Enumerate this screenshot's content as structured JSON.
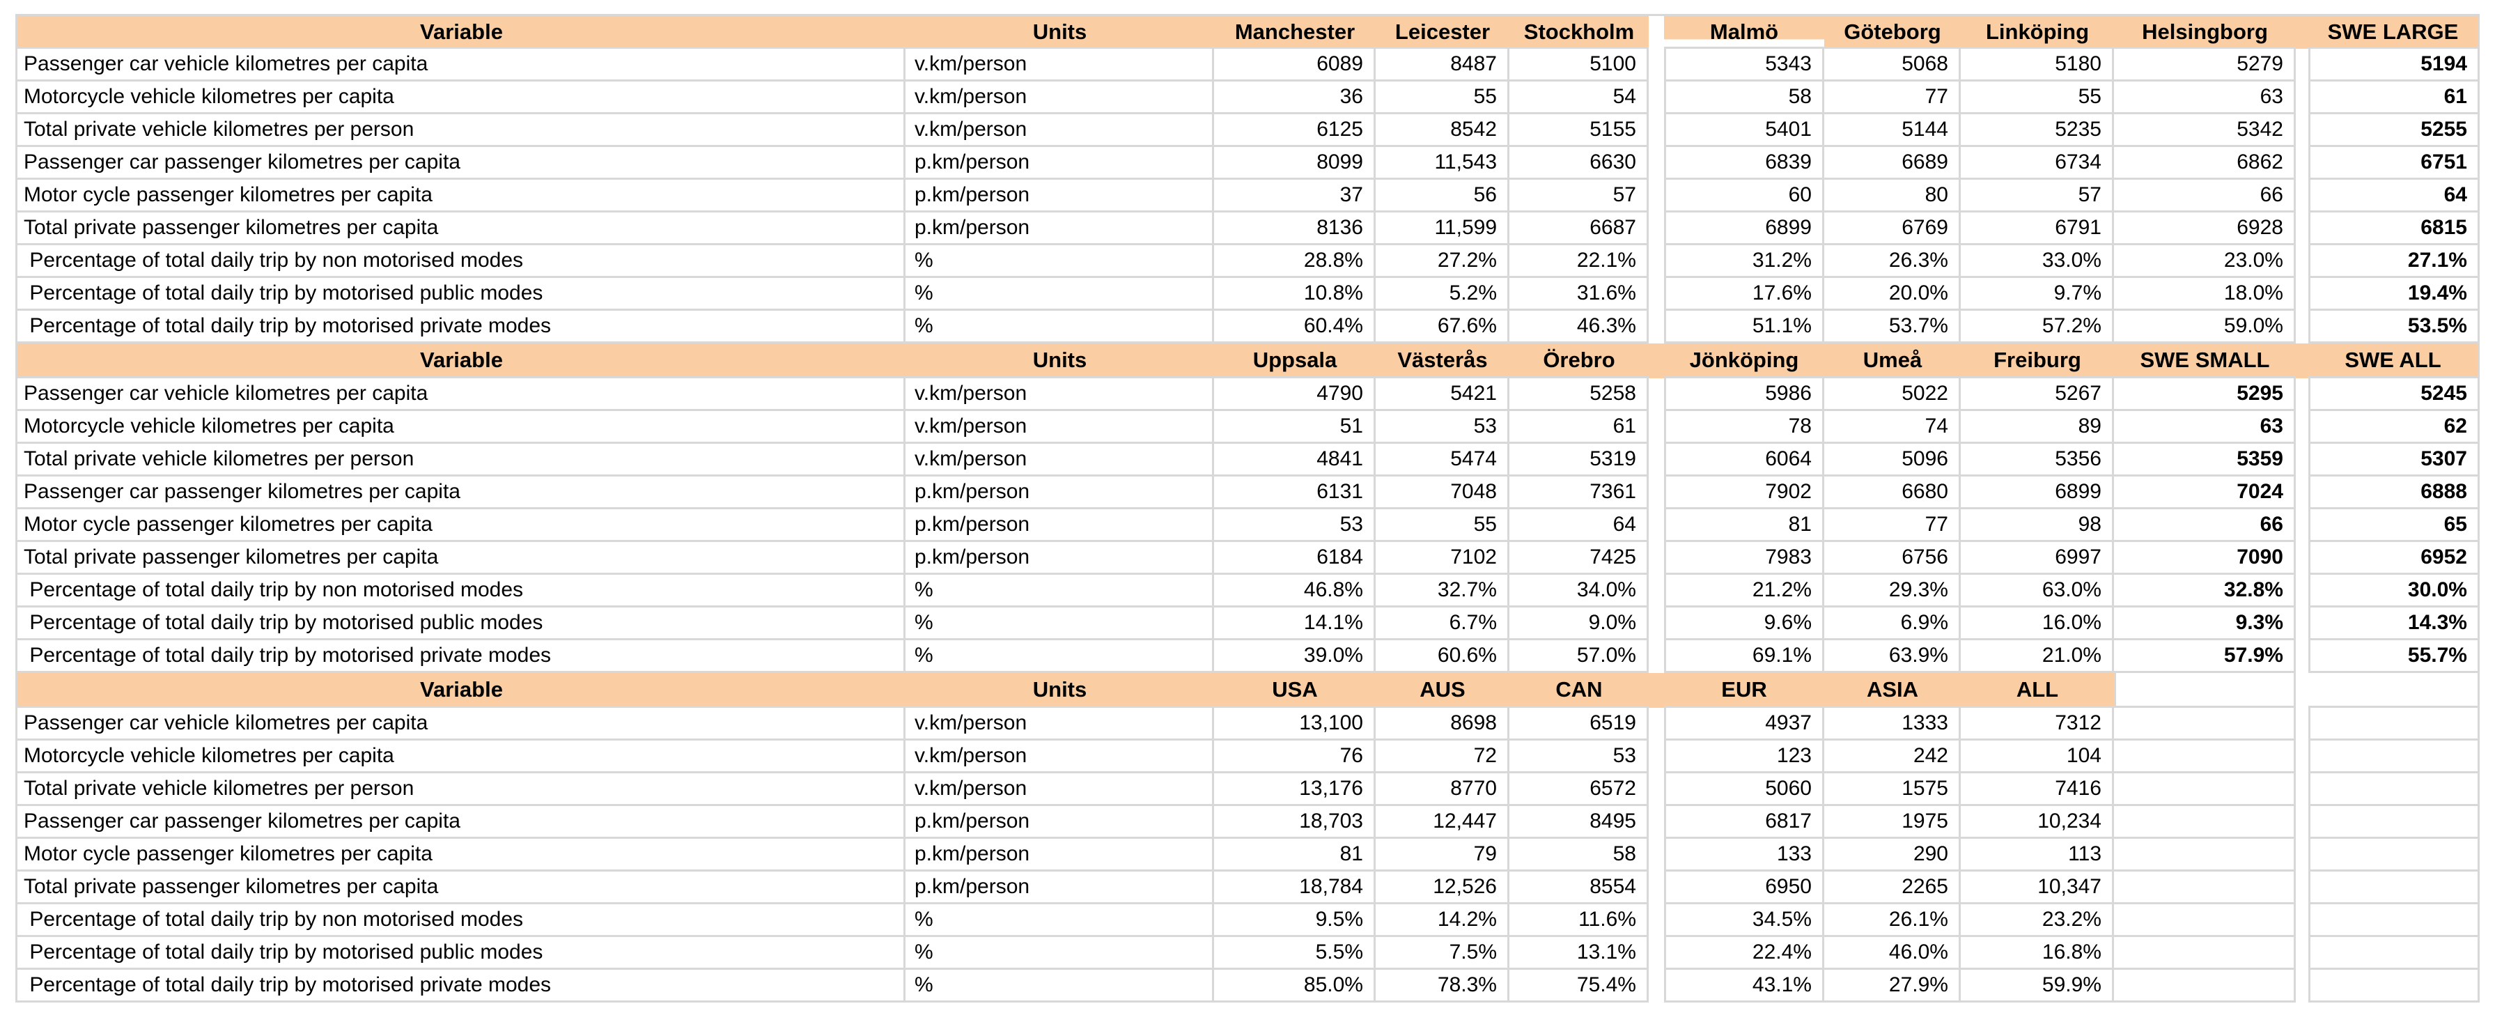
{
  "table": {
    "header_variable": "Variable",
    "header_units": "Units",
    "row_labels": [
      "Passenger car vehicle kilometres per capita",
      "Motorcycle vehicle kilometres per capita",
      "Total private vehicle kilometres per person",
      "Passenger car passenger kilometres per capita",
      "Motor cycle passenger kilometres per capita",
      "Total private passenger kilometres per capita",
      " Percentage of total daily trip by non motorised modes",
      " Percentage of total daily trip by motorised public modes",
      " Percentage of total daily trip by motorised private modes"
    ],
    "row_units": [
      "v.km/person",
      "v.km/person",
      "v.km/person",
      "p.km/person",
      "p.km/person",
      "p.km/person",
      "%",
      "%",
      "%"
    ],
    "sections": [
      {
        "columns": [
          "Manchester",
          "Leicester",
          "Stockholm",
          "Malmö",
          "Göteborg",
          "Linköping",
          "Helsingborg",
          "SWE LARGE"
        ],
        "bold_columns": [
          7
        ],
        "rows": [
          [
            "6089",
            "8487",
            "5100",
            "5343",
            "5068",
            "5180",
            "5279",
            "5194"
          ],
          [
            "36",
            "55",
            "54",
            "58",
            "77",
            "55",
            "63",
            "61"
          ],
          [
            "6125",
            "8542",
            "5155",
            "5401",
            "5144",
            "5235",
            "5342",
            "5255"
          ],
          [
            "8099",
            "11,543",
            "6630",
            "6839",
            "6689",
            "6734",
            "6862",
            "6751"
          ],
          [
            "37",
            "56",
            "57",
            "60",
            "80",
            "57",
            "66",
            "64"
          ],
          [
            "8136",
            "11,599",
            "6687",
            "6899",
            "6769",
            "6791",
            "6928",
            "6815"
          ],
          [
            "28.8%",
            "27.2%",
            "22.1%",
            "31.2%",
            "26.3%",
            "33.0%",
            "23.0%",
            "27.1%"
          ],
          [
            "10.8%",
            "5.2%",
            "31.6%",
            "17.6%",
            "20.0%",
            "9.7%",
            "18.0%",
            "19.4%"
          ],
          [
            "60.4%",
            "67.6%",
            "46.3%",
            "51.1%",
            "53.7%",
            "57.2%",
            "59.0%",
            "53.5%"
          ]
        ]
      },
      {
        "columns": [
          "Uppsala",
          "Västerås",
          "Örebro",
          "Jönköping",
          "Umeå",
          "Freiburg",
          "SWE SMALL",
          "SWE ALL"
        ],
        "bold_columns": [
          6,
          7
        ],
        "rows": [
          [
            "4790",
            "5421",
            "5258",
            "5986",
            "5022",
            "5267",
            "5295",
            "5245"
          ],
          [
            "51",
            "53",
            "61",
            "78",
            "74",
            "89",
            "63",
            "62"
          ],
          [
            "4841",
            "5474",
            "5319",
            "6064",
            "5096",
            "5356",
            "5359",
            "5307"
          ],
          [
            "6131",
            "7048",
            "7361",
            "7902",
            "6680",
            "6899",
            "7024",
            "6888"
          ],
          [
            "53",
            "55",
            "64",
            "81",
            "77",
            "98",
            "66",
            "65"
          ],
          [
            "6184",
            "7102",
            "7425",
            "7983",
            "6756",
            "6997",
            "7090",
            "6952"
          ],
          [
            "46.8%",
            "32.7%",
            "34.0%",
            "21.2%",
            "29.3%",
            "63.0%",
            "32.8%",
            "30.0%"
          ],
          [
            "14.1%",
            "6.7%",
            "9.0%",
            "9.6%",
            "6.9%",
            "16.0%",
            "9.3%",
            "14.3%"
          ],
          [
            "39.0%",
            "60.6%",
            "57.0%",
            "69.1%",
            "63.9%",
            "21.0%",
            "57.9%",
            "55.7%"
          ]
        ]
      },
      {
        "columns": [
          "USA",
          "AUS",
          "CAN",
          "EUR",
          "ASIA",
          "ALL",
          "",
          ""
        ],
        "bold_columns": [],
        "rows": [
          [
            "13,100",
            "8698",
            "6519",
            "4937",
            "1333",
            "7312",
            "",
            ""
          ],
          [
            "76",
            "72",
            "53",
            "123",
            "242",
            "104",
            "",
            ""
          ],
          [
            "13,176",
            "8770",
            "6572",
            "5060",
            "1575",
            "7416",
            "",
            ""
          ],
          [
            "18,703",
            "12,447",
            "8495",
            "6817",
            "1975",
            "10,234",
            "",
            ""
          ],
          [
            "81",
            "79",
            "58",
            "133",
            "290",
            "113",
            "",
            ""
          ],
          [
            "18,784",
            "12,526",
            "8554",
            "6950",
            "2265",
            "10,347",
            "",
            ""
          ],
          [
            "9.5%",
            "14.2%",
            "11.6%",
            "34.5%",
            "26.1%",
            "23.2%",
            "",
            ""
          ],
          [
            "5.5%",
            "7.5%",
            "13.1%",
            "22.4%",
            "46.0%",
            "16.8%",
            "",
            ""
          ],
          [
            "85.0%",
            "78.3%",
            "75.4%",
            "43.1%",
            "27.9%",
            "59.9%",
            "",
            ""
          ]
        ]
      }
    ],
    "colors": {
      "header_bg": "#FBCDA3",
      "grid_line": "#D8D8D8",
      "text": "#000000",
      "background": "#FFFFFF"
    }
  }
}
